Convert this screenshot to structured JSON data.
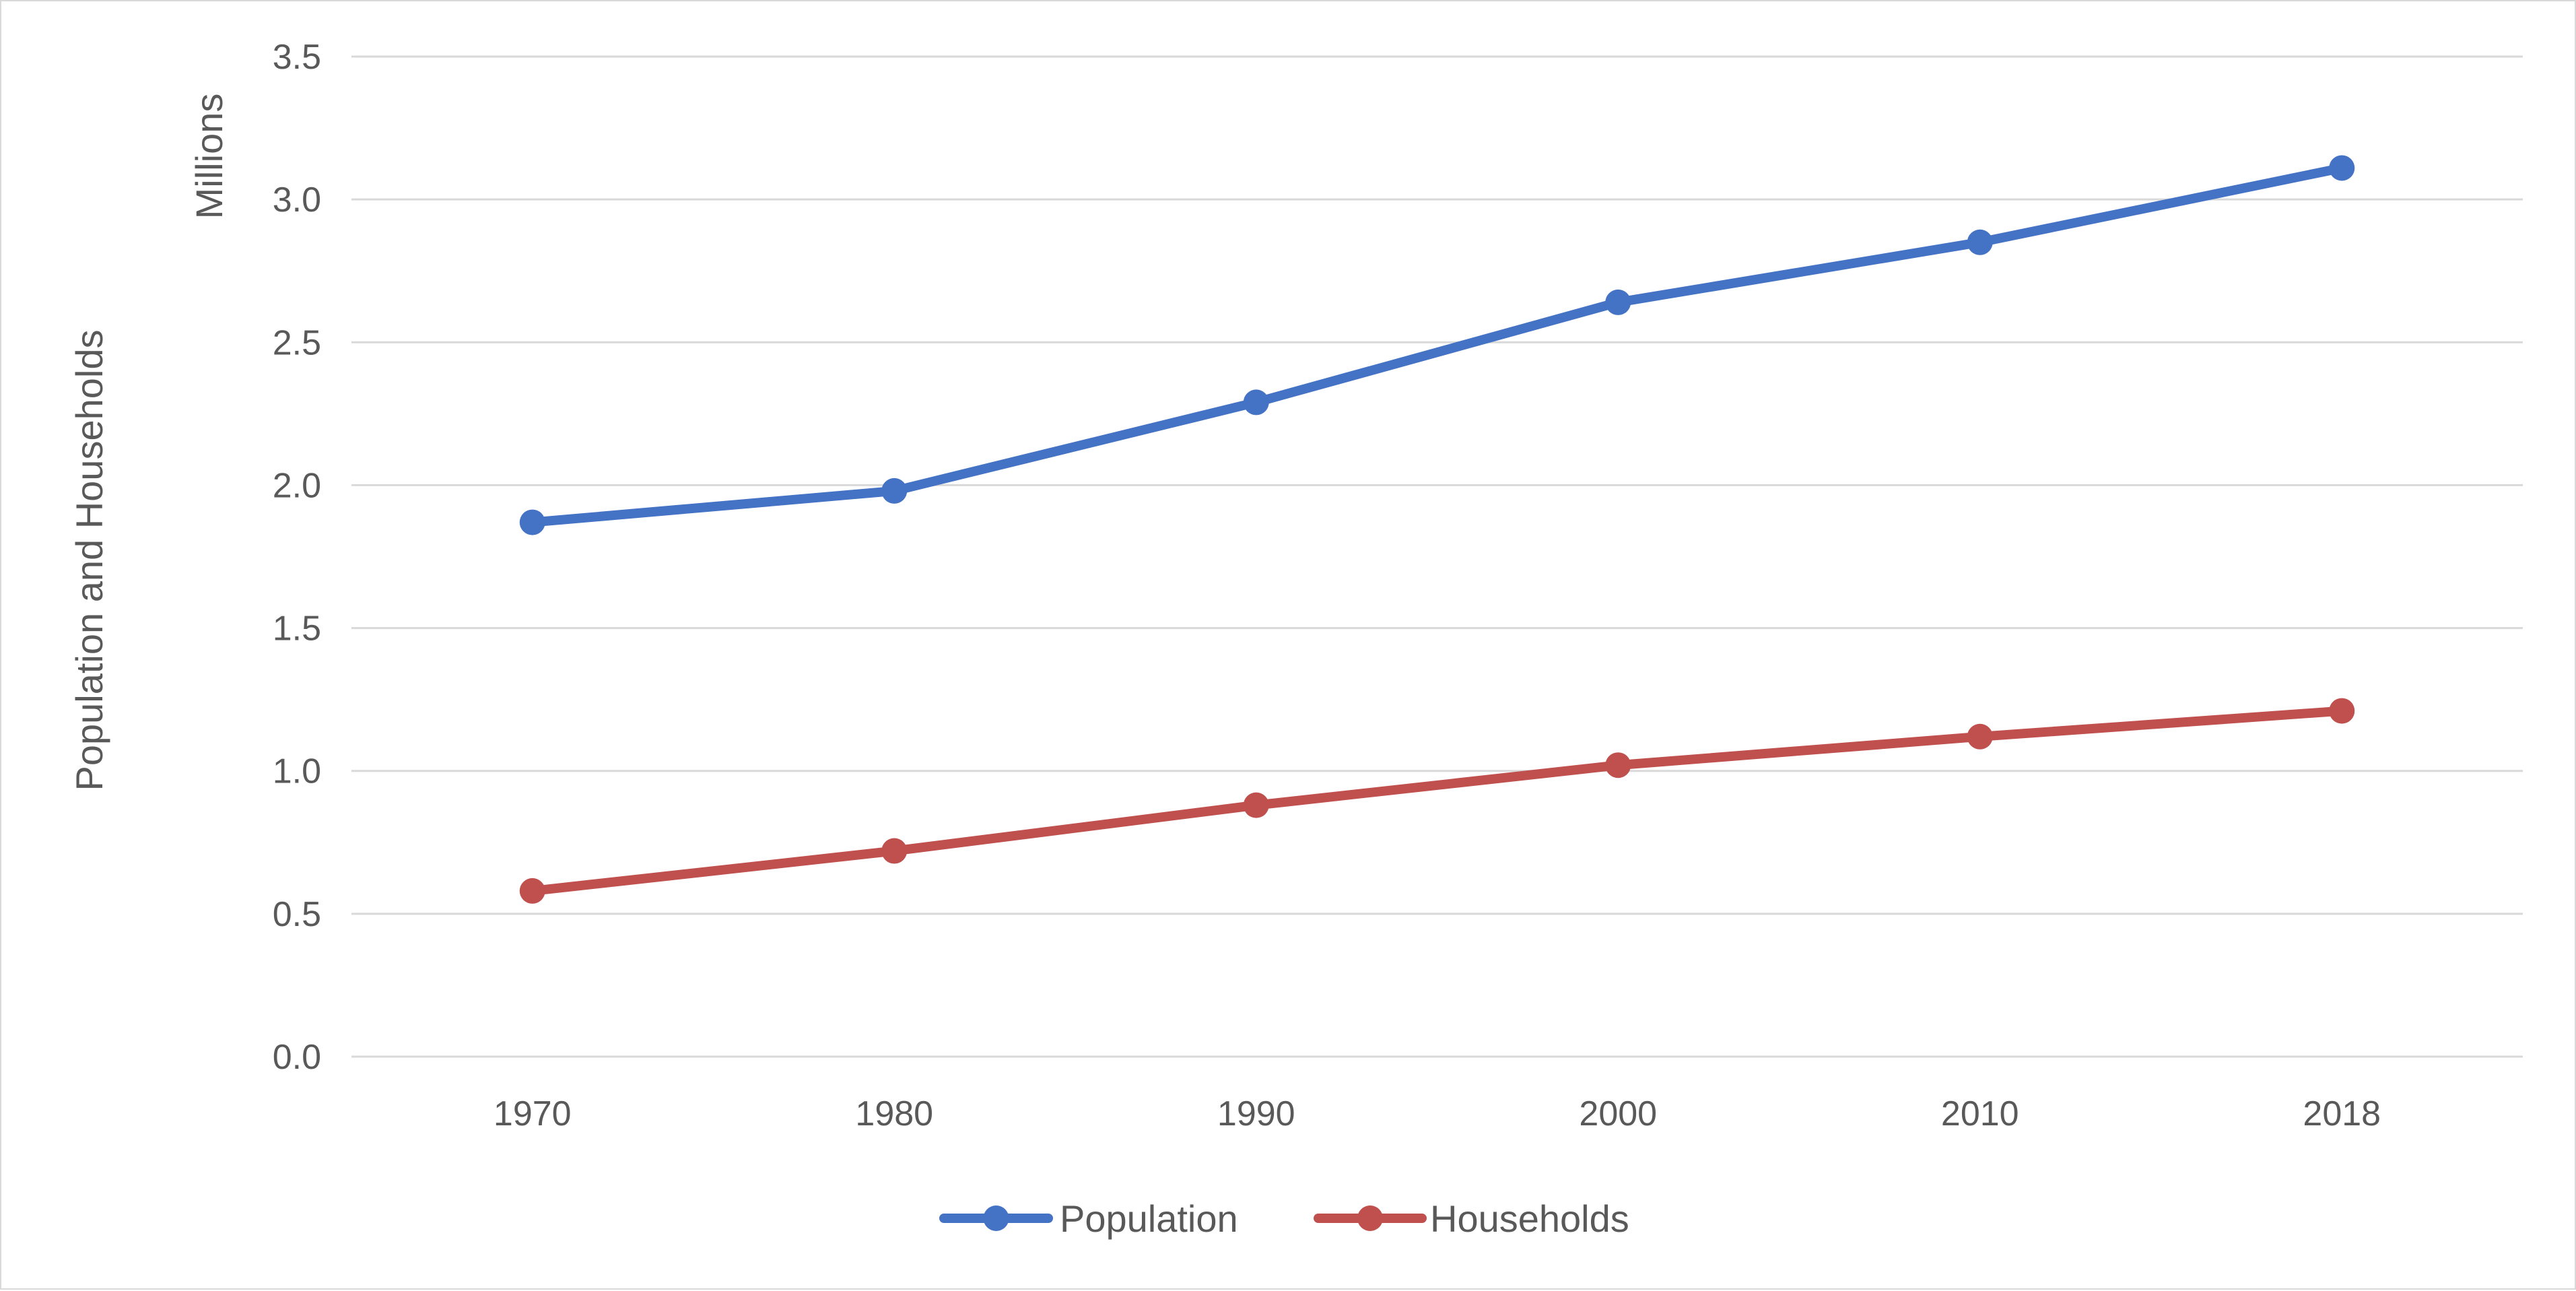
{
  "chart_data": {
    "type": "line",
    "title": "",
    "xlabel": "",
    "ylabel": "Population and Households",
    "yunit_label": "Millions",
    "categories": [
      "1970",
      "1980",
      "1990",
      "2000",
      "2010",
      "2018"
    ],
    "ylim": [
      0,
      3.5
    ],
    "yticks": [
      "0.0",
      "0.5",
      "1.0",
      "1.5",
      "2.0",
      "2.5",
      "3.0",
      "3.5"
    ],
    "grid": true,
    "legend_position": "bottom",
    "series": [
      {
        "name": "Population",
        "color": "#4472c4",
        "values": [
          1.87,
          1.98,
          2.29,
          2.64,
          2.85,
          3.11
        ]
      },
      {
        "name": "Households",
        "color": "#c0504d",
        "values": [
          0.58,
          0.72,
          0.88,
          1.02,
          1.12,
          1.21
        ]
      }
    ]
  }
}
